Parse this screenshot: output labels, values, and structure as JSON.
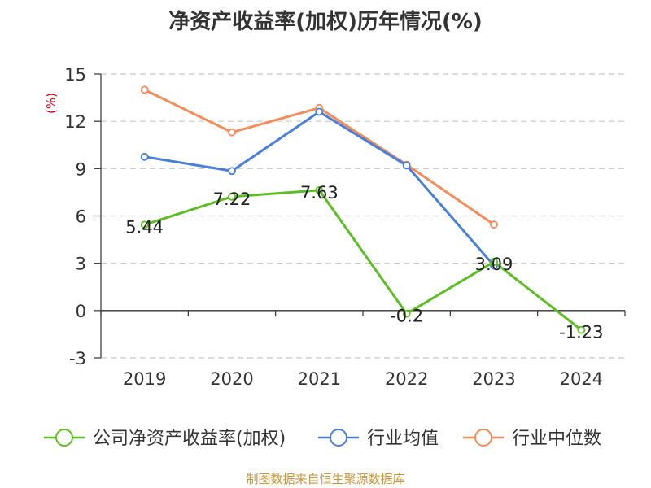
{
  "chart_data": {
    "type": "line",
    "title": "净资产收益率(加权)历年情况(%)",
    "ylabel": "(%)",
    "xlabel": "",
    "categories": [
      "2019",
      "2020",
      "2021",
      "2022",
      "2023",
      "2024"
    ],
    "ylim": [
      -3,
      15
    ],
    "yticks": [
      -3,
      0,
      3,
      6,
      9,
      12,
      15
    ],
    "grid": "horizontal-dashed",
    "legend_position": "bottom",
    "series": [
      {
        "name": "公司净资产收益率(加权)",
        "color": "#5dbe24",
        "values": [
          5.44,
          7.22,
          7.63,
          -0.2,
          3.09,
          -1.23
        ],
        "labels": [
          "5.44",
          "7.22",
          "7.63",
          "-0.2",
          "3.09",
          "-1.23"
        ]
      },
      {
        "name": "行业均值",
        "color": "#4a7fd8",
        "values": [
          9.75,
          8.85,
          12.6,
          9.2,
          2.85,
          null
        ]
      },
      {
        "name": "行业中位数",
        "color": "#f58c5a",
        "values": [
          14.0,
          11.3,
          12.85,
          9.25,
          5.45,
          null
        ]
      }
    ]
  },
  "footer": {
    "source": "制图数据来自恒生聚源数据库"
  }
}
